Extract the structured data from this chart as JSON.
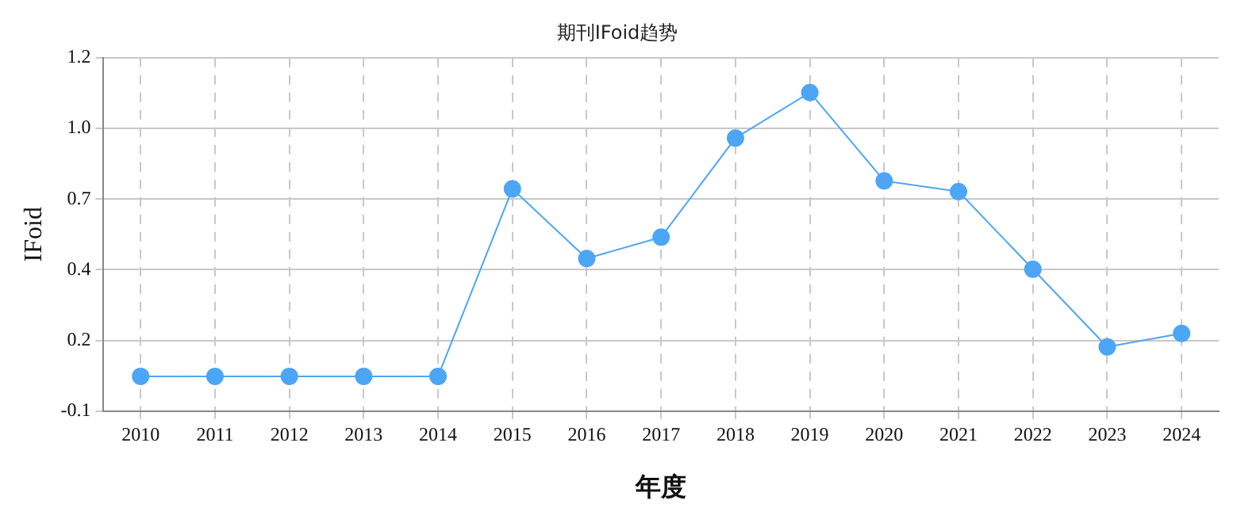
{
  "chart_data": {
    "type": "line",
    "title": "期刊IFoid趋势",
    "xlabel": "年度",
    "ylabel": "IFoid",
    "categories": [
      "2010",
      "2011",
      "2012",
      "2013",
      "2014",
      "2015",
      "2016",
      "2017",
      "2018",
      "2019",
      "2020",
      "2021",
      "2022",
      "2023",
      "2024"
    ],
    "series": [
      {
        "color": "#4da6f5",
        "values": [
          0.03,
          0.03,
          0.03,
          0.03,
          0.03,
          0.73,
          0.47,
          0.55,
          0.92,
          1.09,
          0.76,
          0.72,
          0.43,
          0.14,
          0.19
        ]
      }
    ],
    "ylim": [
      -0.1,
      1.22
    ],
    "yticks": [
      {
        "value": -0.1,
        "label": "-0.1"
      },
      {
        "value": 0.164,
        "label": "0.2"
      },
      {
        "value": 0.428,
        "label": "0.4"
      },
      {
        "value": 0.692,
        "label": "0.7"
      },
      {
        "value": 0.956,
        "label": "1.0"
      },
      {
        "value": 1.22,
        "label": "1.2"
      }
    ],
    "grid": true,
    "legend": false,
    "marker": "circle",
    "line_style": "solid"
  }
}
